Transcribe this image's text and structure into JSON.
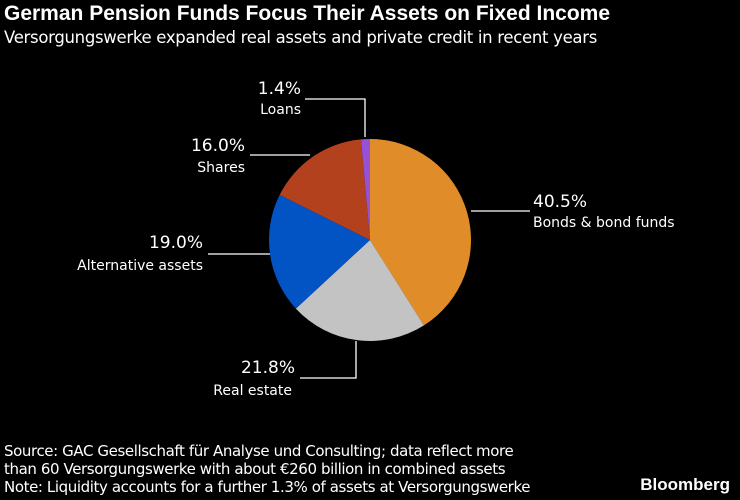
{
  "chart_data": {
    "type": "pie",
    "title": "German Pension Funds Focus Their Assets on Fixed Income",
    "subtitle": "Versorgungswerke expanded real assets and private credit in recent years",
    "slices": [
      {
        "name": "Bonds & bond funds",
        "value": 40.5,
        "value_label": "40.5%",
        "color": "#e08c28"
      },
      {
        "name": "Real estate",
        "value": 21.8,
        "value_label": "21.8%",
        "color": "#c3c3c3"
      },
      {
        "name": "Alternative assets",
        "value": 19.0,
        "value_label": "19.0%",
        "color": "#0253c3"
      },
      {
        "name": "Shares",
        "value": 16.0,
        "value_label": "16.0%",
        "color": "#b3411e"
      },
      {
        "name": "Loans",
        "value": 1.4,
        "value_label": "1.4%",
        "color": "#9652d6"
      }
    ],
    "start": "top",
    "direction": "clockwise"
  },
  "footer": {
    "source_line1": "Source: GAC Gesellschaft für Analyse und Consulting; data reflect more",
    "source_line2": "than 60 Versorgungswerke with about €260 billion in combined assets",
    "note": "Note: Liquidity accounts for a further 1.3% of assets at Versorgungswerke"
  },
  "brand": "Bloomberg"
}
